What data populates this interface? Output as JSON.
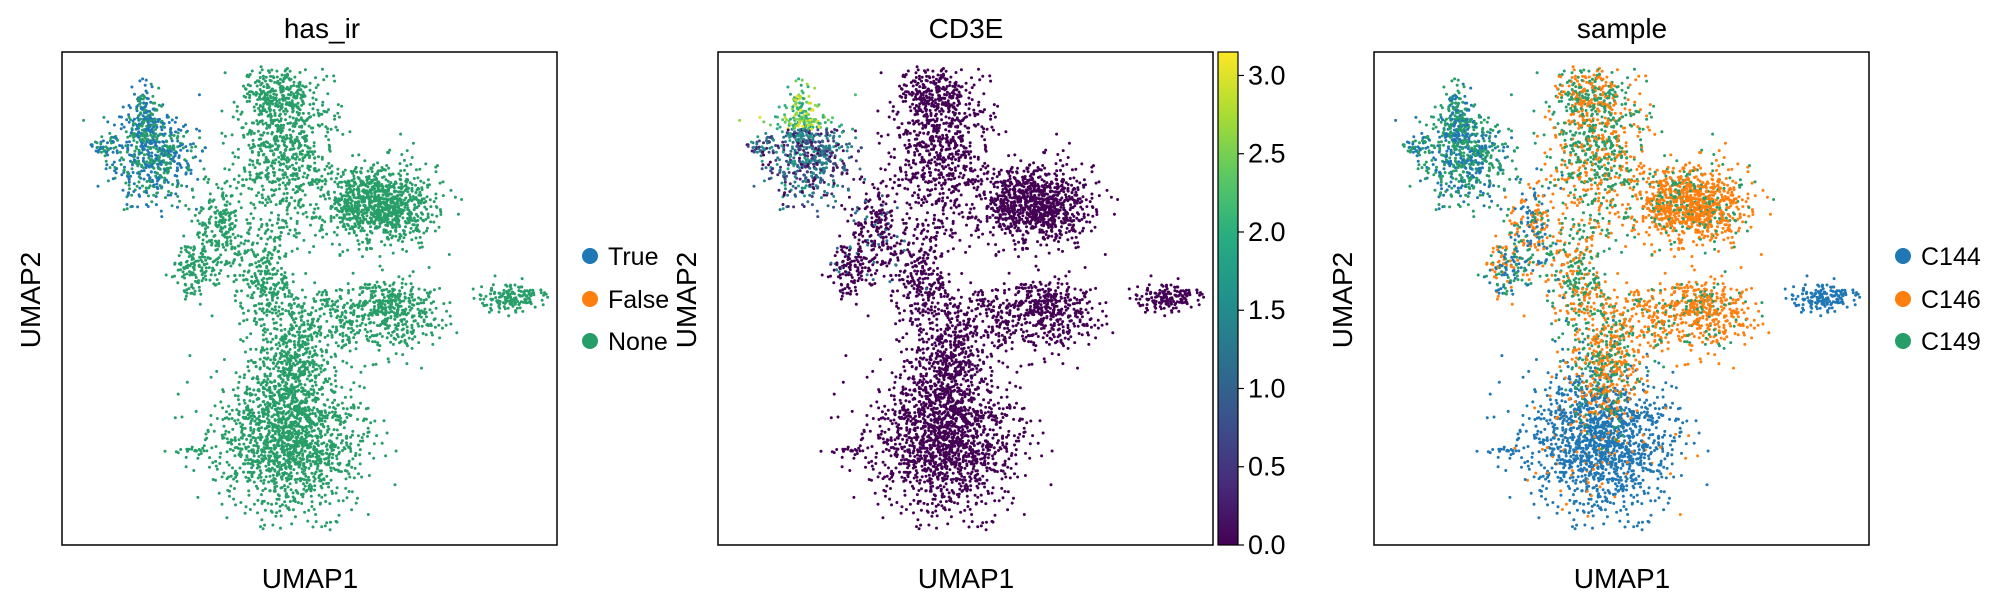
{
  "chart_data": [
    {
      "type": "scatter",
      "title": "has_ir",
      "xlabel": "UMAP1",
      "ylabel": "UMAP2",
      "grid": false,
      "axis_ticks": false,
      "legend_placement": "right",
      "legend": [
        {
          "label": "True",
          "color": "#1f77b4"
        },
        {
          "label": "False",
          "color": "#ff7f0e"
        },
        {
          "label": "None",
          "color": "#279e68"
        }
      ]
    },
    {
      "type": "scatter",
      "title": "CD3E",
      "xlabel": "UMAP1",
      "ylabel": "UMAP2",
      "grid": false,
      "axis_ticks": false,
      "colormap": "viridis",
      "colorbar": {
        "range": [
          0,
          3.15
        ],
        "ticks": [
          "0.0",
          "0.5",
          "1.0",
          "1.5",
          "2.0",
          "2.5",
          "3.0"
        ],
        "tick_values": [
          0,
          0.5,
          1.0,
          1.5,
          2.0,
          2.5,
          3.0
        ]
      }
    },
    {
      "type": "scatter",
      "title": "sample",
      "xlabel": "UMAP1",
      "ylabel": "UMAP2",
      "grid": false,
      "axis_ticks": false,
      "legend_placement": "right",
      "legend": [
        {
          "label": "C144",
          "color": "#1f77b4"
        },
        {
          "label": "C146",
          "color": "#ff7f0e"
        },
        {
          "label": "C149",
          "color": "#279e68"
        }
      ]
    }
  ]
}
